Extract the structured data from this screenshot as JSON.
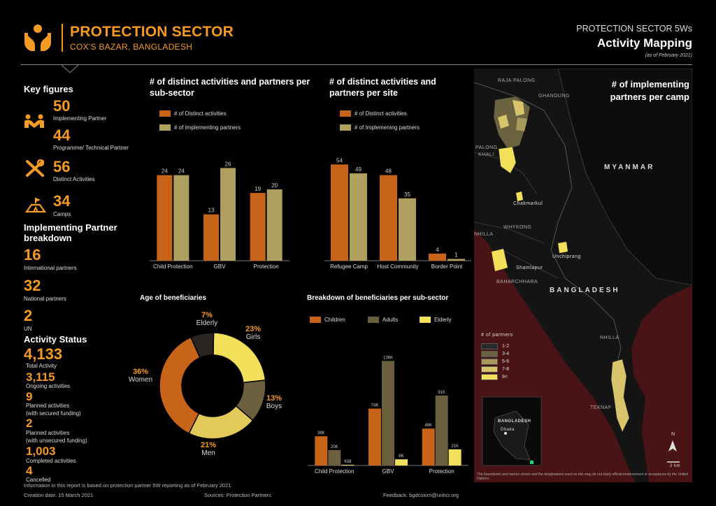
{
  "header": {
    "title": "PROTECTION SECTOR",
    "subtitle": "COX'S BAZAR, BANGLADESH",
    "right_top": "PROTECTION SECTOR 5Ws",
    "right_title": "Activity Mapping",
    "right_date": "(as of February 2021)"
  },
  "key_figures": {
    "title": "Key figures",
    "items": [
      {
        "value": "50",
        "label": "Implementing Partner"
      },
      {
        "value": "44",
        "label": "Programme/ Technical Partner"
      },
      {
        "value": "56",
        "label": "Distinct Activities"
      },
      {
        "value": "34",
        "label": "Camps"
      }
    ]
  },
  "ip_breakdown": {
    "title_line1": "Implementing Partner",
    "title_line2": "breakdown",
    "items": [
      {
        "value": "16",
        "label": "International partners"
      },
      {
        "value": "32",
        "label": "National partners"
      },
      {
        "value": "2",
        "label": "UN"
      }
    ]
  },
  "activity_status": {
    "title": "Activity Status",
    "items": [
      {
        "value": "4,133",
        "label": "Total Activity"
      },
      {
        "value": "3,115",
        "label": "Ongoing activities"
      },
      {
        "value": "9",
        "label": "Planned activities",
        "label2": "(with secured funding)"
      },
      {
        "value": "2",
        "label": "Planned activities",
        "label2": "(with unsecured funding)"
      },
      {
        "value": "1,003",
        "label": "Completed activities"
      },
      {
        "value": "4",
        "label": "Cancelled"
      }
    ]
  },
  "colors": {
    "orange": "#c8641a",
    "khaki": "#b0a060",
    "adults": "#6b5f3e",
    "elderly_yellow": "#f2e05a",
    "accent": "#f59a23"
  },
  "chart_data": [
    {
      "type": "bar",
      "title": "# of distinct activities and partners per sub-sector",
      "categories": [
        "Child Protection",
        "GBV",
        "Protection"
      ],
      "series": [
        {
          "name": "# of Distinct activities",
          "values": [
            24,
            13,
            19
          ]
        },
        {
          "name": "# of Implementing partners",
          "values": [
            24,
            26,
            20
          ]
        }
      ],
      "ylim": [
        0,
        30
      ]
    },
    {
      "type": "bar",
      "title": "# of distinct activities and partners per site",
      "categories": [
        "Refugee Camp",
        "Host Community",
        "Border Point"
      ],
      "series": [
        {
          "name": "# of Distinct activities",
          "values": [
            54,
            48,
            4
          ]
        },
        {
          "name": "# of Implemening partners",
          "values": [
            49,
            35,
            1
          ]
        }
      ],
      "ylim": [
        0,
        60
      ]
    },
    {
      "type": "pie",
      "title": "Age of beneficiaries",
      "slices": [
        {
          "label": "Girls",
          "pct": "23%",
          "value": 23
        },
        {
          "label": "Boys",
          "pct": "13%",
          "value": 13
        },
        {
          "label": "Men",
          "pct": "21%",
          "value": 21
        },
        {
          "label": "Women",
          "pct": "36%",
          "value": 36
        },
        {
          "label": "Elderly",
          "pct": "7%",
          "value": 7
        }
      ]
    },
    {
      "type": "bar",
      "title": "Breakdown of beneficiaries per sub-sector",
      "categories": [
        "Child Protection",
        "GBV",
        "Protection"
      ],
      "series": [
        {
          "name": "Children",
          "values": [
            38,
            74,
            48
          ],
          "labels": [
            "38K",
            "74K",
            "48K"
          ]
        },
        {
          "name": "Adults",
          "values": [
            20,
            136,
            91
          ],
          "labels": [
            "20K",
            "136K",
            "91K"
          ]
        },
        {
          "name": "Elderly",
          "values": [
            0.638,
            8,
            21
          ],
          "labels": [
            "638",
            "8K",
            "21K"
          ]
        }
      ],
      "ylim": [
        0,
        140
      ]
    }
  ],
  "map": {
    "title_line1": "# of implementing",
    "title_line2": "partners per camp",
    "labels": {
      "rajapalong": "RAJA PALONG",
      "ghandung": "GHANDUNG",
      "palong": "PALONG",
      "khali": "KHALI",
      "myanmar": "MYANMAR",
      "chakmarkul": "Chakmarkul",
      "whykong": "WHYKONG",
      "nhilla_top": "NHILLA",
      "unchiprang": "Unchiprang",
      "shamlapur": "Shamlapur",
      "baharchhara": "BAHARCHHARA",
      "bangladesh": "BANGLADESH",
      "nhilla": "NHILLA",
      "teknaf": "TEKNAF",
      "inset_country": "BANGLADESH",
      "inset_city": "Dhaka",
      "scale": "2 km",
      "north": "N"
    },
    "legend_title": "# of partners",
    "legend_items": [
      "1-2",
      "3-4",
      "5-6",
      "7-8",
      "9<"
    ],
    "legend_colors": [
      "#2a2a2a",
      "#6b6340",
      "#a8995a",
      "#d8c46a",
      "#f2e05a"
    ],
    "disclaimer": "The boundaries and names shown and the designations used on this map do not imply official endorsement or acceptance by the United Nations."
  },
  "footer": {
    "info": "Information in this report is based on protection partner 5W reporting as of February 2021",
    "creation": "Creation date: 15 March 2021",
    "sources": "Sources: Protection Partners",
    "feedback": "Feedback: bgdcoxim@unhcr.org"
  }
}
